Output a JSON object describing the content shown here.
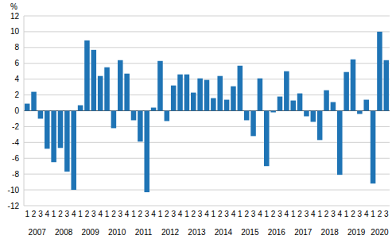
{
  "chart_data": {
    "type": "bar",
    "y_label": "%",
    "categories": [
      "1",
      "2",
      "3",
      "4",
      "1",
      "2",
      "3",
      "4",
      "1",
      "2",
      "3",
      "4",
      "1",
      "2",
      "3",
      "4",
      "1",
      "2",
      "3",
      "4",
      "1",
      "2",
      "3",
      "4",
      "1",
      "2",
      "3",
      "4",
      "1",
      "2",
      "3",
      "4",
      "1",
      "2",
      "3",
      "4",
      "1",
      "2",
      "3",
      "4",
      "1",
      "2",
      "3",
      "4",
      "1",
      "2",
      "3",
      "4",
      "1",
      "2",
      "3",
      "4",
      "1",
      "2",
      "3"
    ],
    "groups": [
      "2007",
      "2008",
      "2009",
      "2010",
      "2011",
      "2012",
      "2013",
      "2014",
      "2015",
      "2016",
      "2017",
      "2018",
      "2019",
      "2020"
    ],
    "values": [
      0.9,
      2.4,
      -1.0,
      -4.8,
      -6.5,
      -4.7,
      -7.7,
      -10.0,
      0.7,
      8.9,
      7.7,
      4.4,
      5.5,
      -2.2,
      6.4,
      4.7,
      -1.2,
      -3.9,
      -10.3,
      0.4,
      6.3,
      -1.3,
      3.2,
      4.6,
      4.6,
      2.3,
      4.1,
      3.9,
      1.6,
      4.4,
      1.4,
      3.1,
      5.7,
      -1.2,
      -3.2,
      4.1,
      -7.0,
      -0.2,
      1.8,
      5.0,
      1.3,
      2.2,
      -0.7,
      -1.4,
      -3.7,
      2.6,
      1.1,
      -8.1,
      4.9,
      6.5,
      -0.4,
      1.4,
      -9.2,
      10.0,
      6.4
    ],
    "color": "#1f74b5",
    "ylim": [
      -12,
      12
    ],
    "yticks": [
      -12,
      -10,
      -8,
      -6,
      -4,
      -2,
      0,
      2,
      4,
      6,
      8,
      10,
      12
    ],
    "grid": true
  }
}
